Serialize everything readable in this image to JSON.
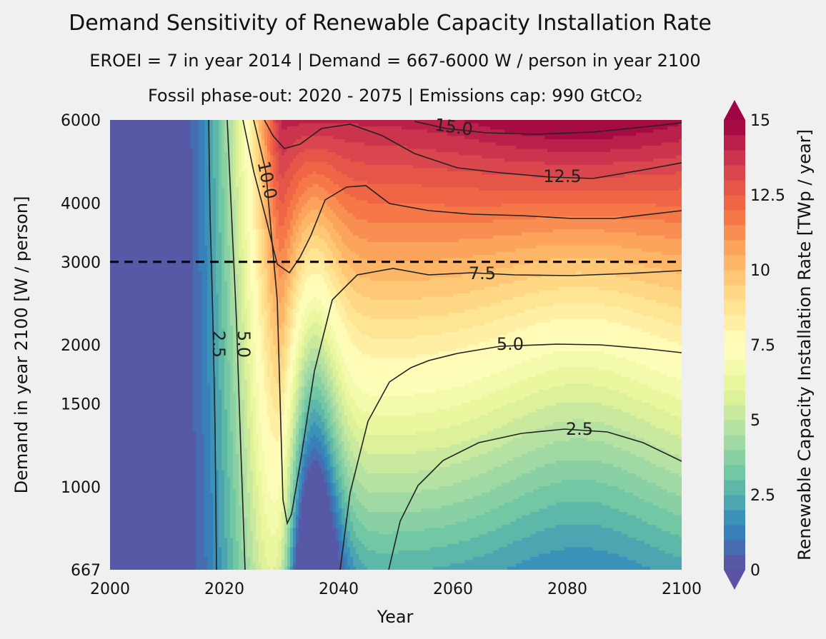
{
  "chart_data": {
    "type": "contour",
    "title": "Demand Sensitivity of Renewable Capacity Installation Rate",
    "subtitle_1": "EROEI = 7 in year 2014   |   Demand = 667-6000 W / person in year 2100",
    "subtitle_2": "Fossil phase-out: 2020 - 2075  |   Emissions cap: 990 GtCO₂",
    "xlabel": "Year",
    "ylabel": "Demand in year 2100 [W / person]",
    "colorbar_label": "Renewable Capacity Installation Rate [TWp / year]",
    "x_ticks": [
      "2000",
      "2020",
      "2040",
      "2060",
      "2080",
      "2100"
    ],
    "y_ticks": [
      "667",
      "1000",
      "1500",
      "2000",
      "3000",
      "4000",
      "6000"
    ],
    "colorbar_ticks": [
      "0",
      "2.5",
      "5",
      "7.5",
      "10",
      "12.5",
      "15"
    ],
    "xlim": [
      2000,
      2100
    ],
    "ylim": [
      667,
      6000
    ],
    "y_scale": "log",
    "clim": [
      0,
      15
    ],
    "colormap": "Spectral_r",
    "contour_labels": [
      "2.5",
      "5.0",
      "7.5",
      "10.0",
      "12.5",
      "15.0",
      "2.5",
      "5.0"
    ],
    "reference_line": {
      "y": 3000,
      "style": "dashed",
      "color": "#000000"
    }
  }
}
